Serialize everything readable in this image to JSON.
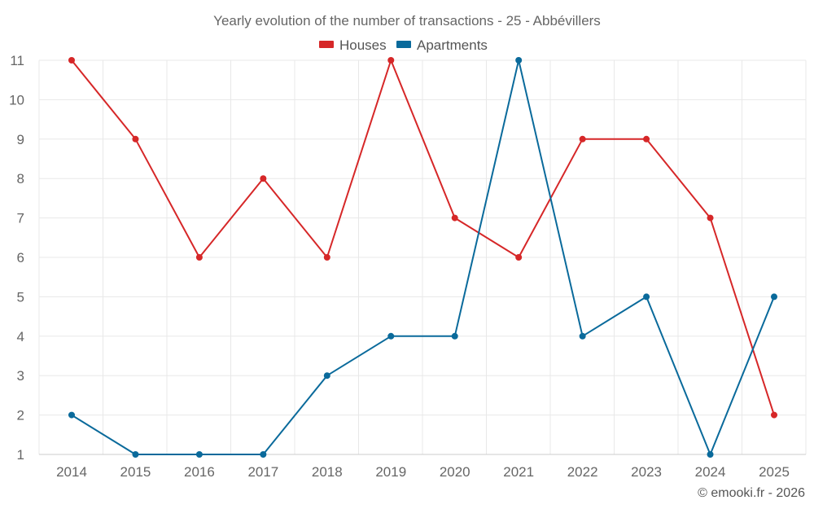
{
  "chart_data": {
    "type": "line",
    "title": "Yearly evolution of the number of transactions - 25 - Abbévillers",
    "xlabel": "",
    "ylabel": "",
    "categories": [
      "2014",
      "2015",
      "2016",
      "2017",
      "2018",
      "2019",
      "2020",
      "2021",
      "2022",
      "2023",
      "2024",
      "2025"
    ],
    "ylim": [
      1,
      11
    ],
    "yticks": [
      1,
      2,
      3,
      4,
      5,
      6,
      7,
      8,
      9,
      10,
      11
    ],
    "grid": true,
    "legend_position": "top-center",
    "series": [
      {
        "name": "Houses",
        "color": "#d62728",
        "values": [
          11,
          9,
          6,
          8,
          6,
          11,
          7,
          6,
          9,
          9,
          7,
          2
        ]
      },
      {
        "name": "Apartments",
        "color": "#0a6a9b",
        "values": [
          2,
          1,
          1,
          1,
          3,
          4,
          4,
          11,
          4,
          5,
          1,
          5
        ]
      }
    ]
  },
  "footer": "© emooki.fr - 2026"
}
